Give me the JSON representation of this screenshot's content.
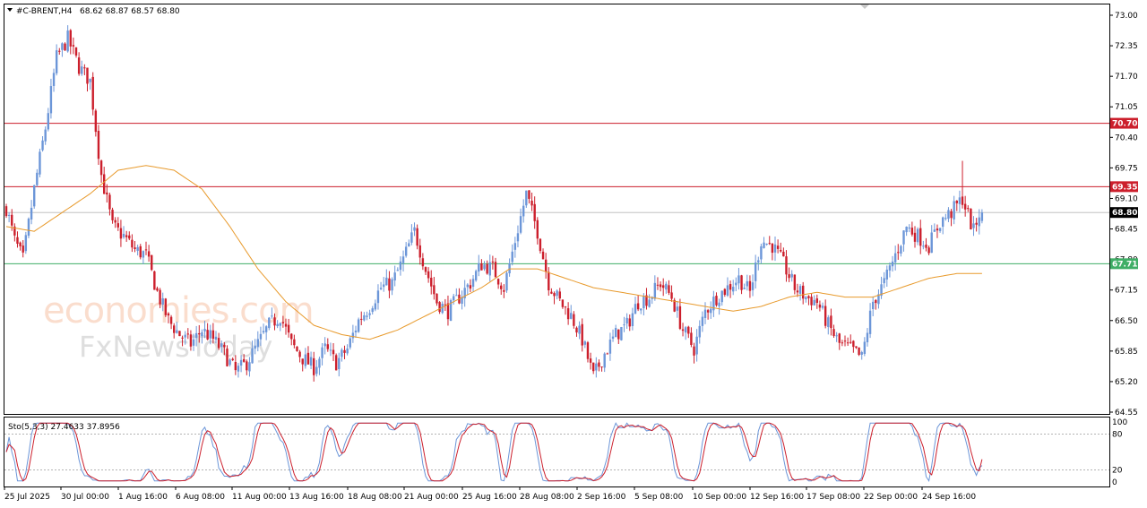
{
  "header": {
    "symbol_label": "#C-BRENT,H4",
    "ohlc_label": "68.62 68.87 68.57 68.80"
  },
  "oscillator": {
    "label": "Sto(5,3,3) 27.4633 37.8956",
    "scale": [
      "100",
      "80",
      "20",
      "0"
    ]
  },
  "watermark": {
    "line1": "economies.com",
    "line2": "FxNewsToday"
  },
  "colors": {
    "bull": "#6c96d8",
    "bear": "#cc1f2c",
    "ma": "#e89a2c",
    "resistance": "#cc1f2c",
    "support": "#3fae66",
    "current": "#000000",
    "stoch_main": "#6c96d8",
    "stoch_signal": "#cc1f2c"
  },
  "chart_data": {
    "type": "candlestick",
    "symbol": "#C-BRENT",
    "timeframe": "H4",
    "ylim": [
      64.55,
      73.0
    ],
    "y_ticks": [
      "73.00",
      "72.35",
      "71.70",
      "71.05",
      "70.40",
      "69.75",
      "69.10",
      "68.45",
      "67.80",
      "67.15",
      "66.50",
      "65.85",
      "65.20",
      "64.55"
    ],
    "x_ticks": [
      "25 Jul 2025",
      "30 Jul 00:00",
      "1 Aug 16:00",
      "6 Aug 08:00",
      "11 Aug 00:00",
      "13 Aug 16:00",
      "18 Aug 08:00",
      "21 Aug 00:00",
      "25 Aug 16:00",
      "28 Aug 08:00",
      "2 Sep 16:00",
      "5 Sep 08:00",
      "10 Sep 00:00",
      "12 Sep 16:00",
      "17 Sep 08:00",
      "22 Sep 00:00",
      "24 Sep 16:00"
    ],
    "levels": [
      {
        "label": "70.70",
        "value": 70.7,
        "role": "resistance"
      },
      {
        "label": "69.35",
        "value": 69.35,
        "role": "resistance"
      },
      {
        "label": "68.80",
        "value": 68.8,
        "role": "current"
      },
      {
        "label": "67.71",
        "value": 67.71,
        "role": "support"
      }
    ],
    "last_ohlc": {
      "open": 68.62,
      "high": 68.87,
      "low": 68.57,
      "close": 68.8
    },
    "close_path": [
      [
        0,
        68.9
      ],
      [
        3,
        68.2
      ],
      [
        6,
        67.8
      ],
      [
        10,
        69.3
      ],
      [
        14,
        70.6
      ],
      [
        18,
        72.1
      ],
      [
        22,
        72.5
      ],
      [
        26,
        71.9
      ],
      [
        30,
        71.6
      ],
      [
        34,
        69.6
      ],
      [
        38,
        68.5
      ],
      [
        42,
        68.3
      ],
      [
        46,
        68.0
      ],
      [
        50,
        67.9
      ],
      [
        54,
        67.1
      ],
      [
        58,
        66.5
      ],
      [
        62,
        66.2
      ],
      [
        66,
        66.0
      ],
      [
        70,
        66.3
      ],
      [
        74,
        66.1
      ],
      [
        78,
        65.8
      ],
      [
        82,
        65.4
      ],
      [
        86,
        65.6
      ],
      [
        90,
        66.0
      ],
      [
        94,
        66.4
      ],
      [
        98,
        66.6
      ],
      [
        102,
        66.0
      ],
      [
        106,
        65.7
      ],
      [
        110,
        65.5
      ],
      [
        114,
        65.9
      ],
      [
        118,
        65.6
      ],
      [
        122,
        65.9
      ],
      [
        126,
        66.5
      ],
      [
        130,
        66.8
      ],
      [
        134,
        67.2
      ],
      [
        138,
        67.3
      ],
      [
        142,
        67.8
      ],
      [
        146,
        68.4
      ],
      [
        150,
        67.6
      ],
      [
        154,
        66.9
      ],
      [
        158,
        66.7
      ],
      [
        162,
        67.0
      ],
      [
        166,
        67.3
      ],
      [
        170,
        67.7
      ],
      [
        174,
        67.6
      ],
      [
        178,
        67.2
      ],
      [
        182,
        68.2
      ],
      [
        186,
        69.2
      ],
      [
        190,
        68.4
      ],
      [
        194,
        67.3
      ],
      [
        198,
        66.9
      ],
      [
        202,
        66.6
      ],
      [
        206,
        66.1
      ],
      [
        210,
        65.3
      ],
      [
        214,
        65.8
      ],
      [
        218,
        66.2
      ],
      [
        222,
        66.4
      ],
      [
        226,
        66.9
      ],
      [
        230,
        67.0
      ],
      [
        234,
        67.3
      ],
      [
        238,
        67.0
      ],
      [
        242,
        66.3
      ],
      [
        246,
        65.9
      ],
      [
        250,
        66.7
      ],
      [
        254,
        67.0
      ],
      [
        258,
        67.2
      ],
      [
        262,
        67.4
      ],
      [
        266,
        67.1
      ],
      [
        270,
        68.2
      ],
      [
        274,
        68.1
      ],
      [
        278,
        67.7
      ],
      [
        282,
        67.2
      ],
      [
        286,
        67.0
      ],
      [
        290,
        66.9
      ],
      [
        294,
        66.4
      ],
      [
        298,
        66.0
      ],
      [
        302,
        65.9
      ],
      [
        306,
        65.7
      ],
      [
        310,
        66.9
      ],
      [
        314,
        67.3
      ],
      [
        318,
        67.9
      ],
      [
        322,
        68.5
      ],
      [
        326,
        68.3
      ],
      [
        330,
        68.1
      ],
      [
        334,
        68.6
      ],
      [
        338,
        68.8
      ],
      [
        342,
        69.1
      ],
      [
        346,
        68.4
      ],
      [
        348,
        68.8
      ]
    ],
    "ma_path": [
      [
        0,
        68.5
      ],
      [
        10,
        68.4
      ],
      [
        20,
        68.8
      ],
      [
        30,
        69.2
      ],
      [
        40,
        69.7
      ],
      [
        50,
        69.8
      ],
      [
        60,
        69.7
      ],
      [
        70,
        69.3
      ],
      [
        80,
        68.5
      ],
      [
        90,
        67.6
      ],
      [
        100,
        66.9
      ],
      [
        110,
        66.4
      ],
      [
        120,
        66.2
      ],
      [
        130,
        66.1
      ],
      [
        140,
        66.3
      ],
      [
        150,
        66.6
      ],
      [
        160,
        66.9
      ],
      [
        170,
        67.2
      ],
      [
        180,
        67.6
      ],
      [
        190,
        67.6
      ],
      [
        200,
        67.4
      ],
      [
        210,
        67.2
      ],
      [
        220,
        67.1
      ],
      [
        230,
        67.0
      ],
      [
        240,
        66.9
      ],
      [
        250,
        66.8
      ],
      [
        260,
        66.7
      ],
      [
        270,
        66.8
      ],
      [
        280,
        67.0
      ],
      [
        290,
        67.1
      ],
      [
        300,
        67.0
      ],
      [
        310,
        67.0
      ],
      [
        320,
        67.2
      ],
      [
        330,
        67.4
      ],
      [
        340,
        67.5
      ],
      [
        348,
        67.5
      ]
    ],
    "stochastic": {
      "k_period": 5,
      "d_period": 3,
      "slowing": 3,
      "main_last": 27.4633,
      "signal_last": 37.8956,
      "levels": [
        80,
        20
      ],
      "ylim": [
        0,
        100
      ]
    }
  }
}
